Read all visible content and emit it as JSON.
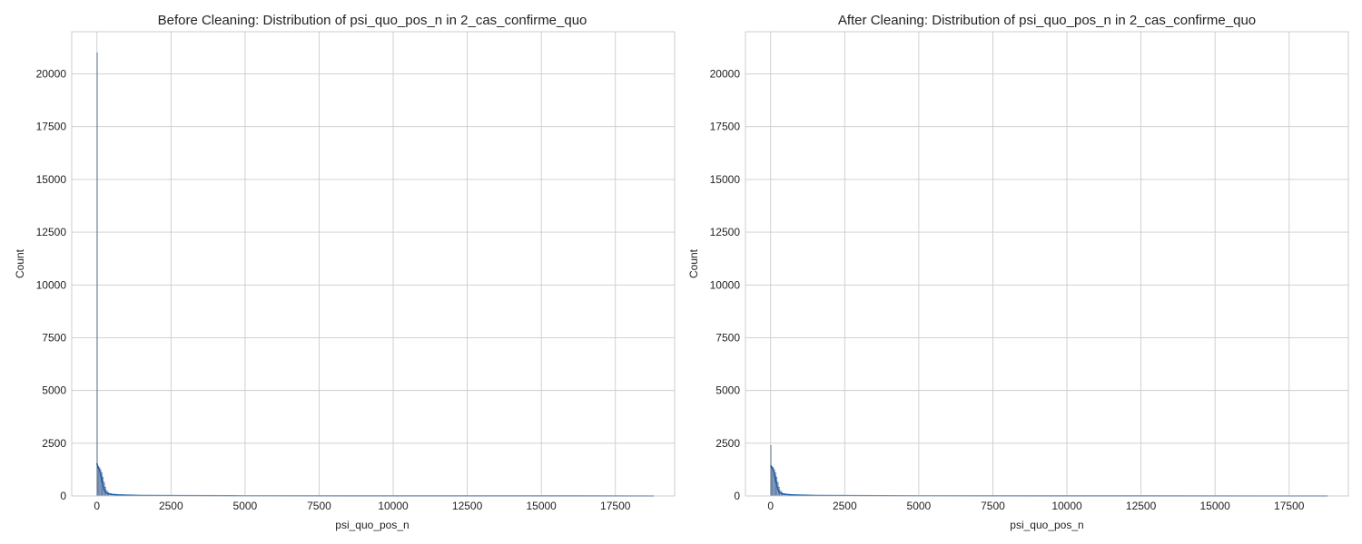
{
  "chart_data": [
    {
      "type": "histogram",
      "title": "Before Cleaning: Distribution of psi_quo_pos_n in 2_cas_confirme_quo",
      "xlabel": "psi_quo_pos_n",
      "ylabel": "Count",
      "xlim": [
        -850,
        19500
      ],
      "ylim": [
        0,
        22000
      ],
      "xticks": [
        0,
        2500,
        5000,
        7500,
        10000,
        12500,
        15000,
        17500
      ],
      "yticks": [
        0,
        2500,
        5000,
        7500,
        10000,
        12500,
        15000,
        17500,
        20000
      ],
      "grid": true,
      "bar_color": "#4c72b0",
      "kde_color": "#1f5fa8",
      "bins": [
        {
          "x0": 0,
          "x1": 20,
          "count": 21000
        },
        {
          "x0": 20,
          "x1": 60,
          "count": 1400
        },
        {
          "x0": 60,
          "x1": 100,
          "count": 1350
        },
        {
          "x0": 100,
          "x1": 140,
          "count": 1250
        },
        {
          "x0": 140,
          "x1": 180,
          "count": 1100
        },
        {
          "x0": 180,
          "x1": 220,
          "count": 900
        },
        {
          "x0": 220,
          "x1": 260,
          "count": 650
        },
        {
          "x0": 260,
          "x1": 300,
          "count": 420
        },
        {
          "x0": 300,
          "x1": 350,
          "count": 260
        },
        {
          "x0": 350,
          "x1": 400,
          "count": 170
        },
        {
          "x0": 400,
          "x1": 500,
          "count": 110
        },
        {
          "x0": 500,
          "x1": 700,
          "count": 70
        },
        {
          "x0": 700,
          "x1": 1000,
          "count": 40
        },
        {
          "x0": 1000,
          "x1": 1500,
          "count": 25
        },
        {
          "x0": 1500,
          "x1": 2500,
          "count": 12
        },
        {
          "x0": 2500,
          "x1": 5000,
          "count": 5
        },
        {
          "x0": 5000,
          "x1": 18800,
          "count": 2
        }
      ],
      "kde": {
        "x": [
          0,
          40,
          80,
          120,
          160,
          200,
          240,
          280,
          320,
          400,
          500,
          700,
          1000,
          1500,
          2500,
          5000,
          10000,
          18800
        ],
        "y": [
          1550,
          1350,
          1250,
          1050,
          800,
          550,
          330,
          200,
          140,
          100,
          75,
          50,
          35,
          22,
          12,
          5,
          2,
          0
        ]
      }
    },
    {
      "type": "histogram",
      "title": "After Cleaning: Distribution of psi_quo_pos_n in 2_cas_confirme_quo",
      "xlabel": "psi_quo_pos_n",
      "ylabel": "Count",
      "xlim": [
        -850,
        19500
      ],
      "ylim": [
        0,
        22000
      ],
      "xticks": [
        0,
        2500,
        5000,
        7500,
        10000,
        12500,
        15000,
        17500
      ],
      "yticks": [
        0,
        2500,
        5000,
        7500,
        10000,
        12500,
        15000,
        17500,
        20000
      ],
      "grid": true,
      "bar_color": "#4c72b0",
      "kde_color": "#1f5fa8",
      "bins": [
        {
          "x0": 0,
          "x1": 20,
          "count": 2400
        },
        {
          "x0": 20,
          "x1": 60,
          "count": 1400
        },
        {
          "x0": 60,
          "x1": 100,
          "count": 1350
        },
        {
          "x0": 100,
          "x1": 140,
          "count": 1250
        },
        {
          "x0": 140,
          "x1": 180,
          "count": 1100
        },
        {
          "x0": 180,
          "x1": 220,
          "count": 900
        },
        {
          "x0": 220,
          "x1": 260,
          "count": 650
        },
        {
          "x0": 260,
          "x1": 300,
          "count": 420
        },
        {
          "x0": 300,
          "x1": 350,
          "count": 260
        },
        {
          "x0": 350,
          "x1": 400,
          "count": 170
        },
        {
          "x0": 400,
          "x1": 500,
          "count": 110
        },
        {
          "x0": 500,
          "x1": 700,
          "count": 70
        },
        {
          "x0": 700,
          "x1": 1000,
          "count": 40
        },
        {
          "x0": 1000,
          "x1": 1500,
          "count": 25
        },
        {
          "x0": 1500,
          "x1": 2500,
          "count": 12
        },
        {
          "x0": 2500,
          "x1": 5000,
          "count": 5
        },
        {
          "x0": 5000,
          "x1": 18800,
          "count": 2
        }
      ],
      "kde": {
        "x": [
          0,
          40,
          80,
          120,
          160,
          200,
          240,
          280,
          320,
          400,
          500,
          700,
          1000,
          1500,
          2500,
          5000,
          10000,
          18800
        ],
        "y": [
          1450,
          1350,
          1250,
          1050,
          800,
          550,
          330,
          200,
          140,
          100,
          75,
          50,
          35,
          22,
          12,
          5,
          2,
          0
        ]
      }
    }
  ]
}
